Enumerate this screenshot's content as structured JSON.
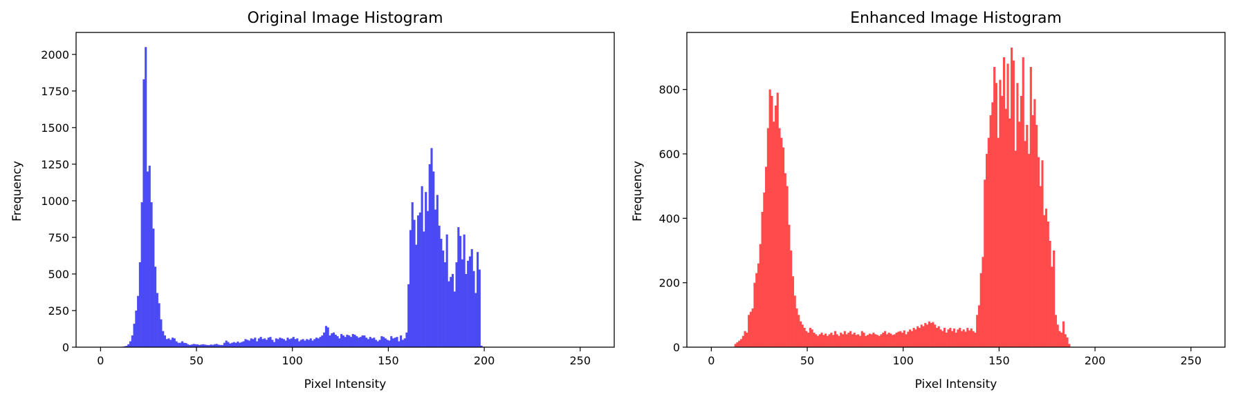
{
  "chart_data": [
    {
      "type": "bar",
      "title": "Original Image Histogram",
      "xlabel": "Pixel Intensity",
      "ylabel": "Frequency",
      "xlim": [
        -12.75,
        267.75
      ],
      "ylim": [
        0,
        2150
      ],
      "xticks": [
        0,
        50,
        100,
        150,
        200,
        250
      ],
      "yticks": [
        0,
        250,
        500,
        750,
        1000,
        1250,
        1500,
        1750,
        2000
      ],
      "color": "#4b4bf5",
      "bin_width": 1,
      "x_start": 10,
      "values": [
        2,
        3,
        6,
        9,
        20,
        40,
        80,
        160,
        250,
        350,
        580,
        990,
        1830,
        2050,
        1200,
        1240,
        990,
        810,
        550,
        370,
        300,
        190,
        110,
        80,
        55,
        60,
        50,
        65,
        60,
        40,
        30,
        30,
        40,
        30,
        28,
        20,
        15,
        18,
        22,
        20,
        19,
        15,
        18,
        20,
        17,
        15,
        14,
        18,
        16,
        20,
        22,
        17,
        15,
        15,
        30,
        45,
        35,
        25,
        30,
        35,
        30,
        38,
        30,
        35,
        40,
        55,
        50,
        45,
        60,
        55,
        65,
        40,
        60,
        70,
        55,
        60,
        50,
        65,
        70,
        50,
        35,
        60,
        55,
        65,
        60,
        55,
        45,
        65,
        55,
        60,
        70,
        55,
        60,
        40,
        50,
        55,
        45,
        55,
        50,
        60,
        45,
        55,
        65,
        60,
        70,
        80,
        100,
        145,
        135,
        80,
        95,
        100,
        85,
        75,
        60,
        90,
        80,
        70,
        85,
        80,
        70,
        90,
        85,
        75,
        65,
        70,
        80,
        80,
        65,
        55,
        70,
        60,
        65,
        50,
        40,
        50,
        75,
        70,
        60,
        50,
        45,
        75,
        60,
        65,
        70,
        40,
        80,
        50,
        60,
        100,
        430,
        800,
        990,
        870,
        700,
        900,
        920,
        1100,
        790,
        1060,
        930,
        1250,
        1360,
        1200,
        940,
        1040,
        830,
        740,
        660,
        580,
        770,
        450,
        480,
        500,
        380,
        580,
        820,
        760,
        600,
        770,
        500,
        590,
        620,
        670,
        520,
        370,
        650,
        530,
        10
      ]
    },
    {
      "type": "bar",
      "title": "Enhanced Image Histogram",
      "xlabel": "Pixel Intensity",
      "ylabel": "Frequency",
      "xlim": [
        -12.75,
        267.75
      ],
      "ylim": [
        0,
        977
      ],
      "xticks": [
        0,
        50,
        100,
        150,
        200,
        250
      ],
      "yticks": [
        0,
        200,
        400,
        600,
        800
      ],
      "color": "#ff4b4b",
      "bin_width": 1,
      "x_start": 12,
      "values": [
        10,
        15,
        20,
        25,
        35,
        50,
        45,
        100,
        110,
        120,
        200,
        230,
        260,
        320,
        420,
        480,
        560,
        680,
        800,
        780,
        700,
        750,
        790,
        680,
        650,
        620,
        540,
        500,
        380,
        300,
        220,
        160,
        120,
        100,
        80,
        70,
        60,
        50,
        45,
        60,
        55,
        45,
        40,
        35,
        40,
        45,
        38,
        42,
        35,
        40,
        45,
        38,
        50,
        40,
        35,
        45,
        40,
        50,
        40,
        45,
        50,
        40,
        45,
        38,
        40,
        35,
        50,
        45,
        35,
        38,
        42,
        40,
        45,
        40,
        38,
        35,
        40,
        45,
        50,
        40,
        45,
        42,
        38,
        40,
        45,
        48,
        50,
        45,
        52,
        40,
        48,
        55,
        50,
        60,
        55,
        65,
        60,
        70,
        65,
        75,
        70,
        80,
        75,
        78,
        70,
        60,
        65,
        55,
        50,
        60,
        45,
        55,
        60,
        50,
        58,
        45,
        55,
        60,
        50,
        55,
        48,
        60,
        52,
        58,
        50,
        45,
        100,
        130,
        230,
        280,
        520,
        600,
        650,
        720,
        760,
        870,
        820,
        650,
        830,
        780,
        900,
        740,
        880,
        710,
        930,
        890,
        610,
        820,
        700,
        780,
        900,
        640,
        690,
        600,
        870,
        720,
        770,
        690,
        590,
        500,
        580,
        410,
        430,
        390,
        330,
        250,
        300,
        100,
        70,
        50,
        45,
        80,
        40,
        30,
        10
      ]
    }
  ]
}
